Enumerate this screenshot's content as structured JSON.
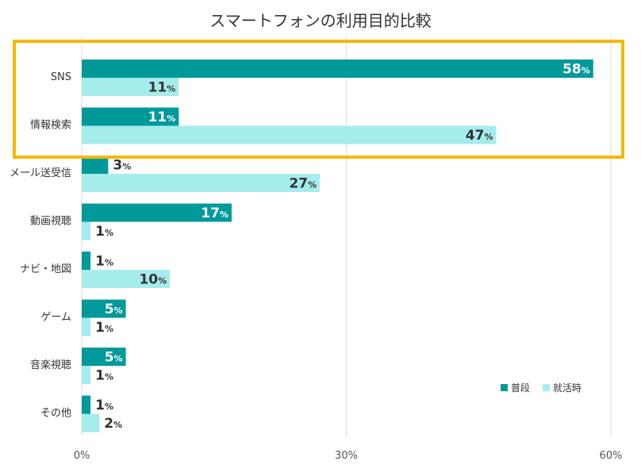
{
  "chart_data": {
    "type": "bar",
    "orientation": "horizontal",
    "title": "スマートフォンの利用目的比較",
    "categories": [
      "SNS",
      "情報検索",
      "メール送受信",
      "動画視聴",
      "ナビ・地図",
      "ゲーム",
      "音楽視聴",
      "その他"
    ],
    "series": [
      {
        "name": "普段",
        "color": "#00999a",
        "values": [
          58,
          11,
          3,
          17,
          1,
          5,
          5,
          1
        ]
      },
      {
        "name": "就活時",
        "color": "#a6ecec",
        "values": [
          11,
          47,
          27,
          1,
          10,
          1,
          1,
          2
        ]
      }
    ],
    "value_suffix": "%",
    "xlim": [
      0,
      60
    ],
    "xticks": [
      0,
      30,
      60
    ],
    "xtick_labels": [
      "0%",
      "30%",
      "60%"
    ],
    "grid": true,
    "legend_position": "bottom-right",
    "highlight": {
      "categories": [
        "SNS",
        "情報検索"
      ],
      "color": "#f5b800"
    }
  }
}
